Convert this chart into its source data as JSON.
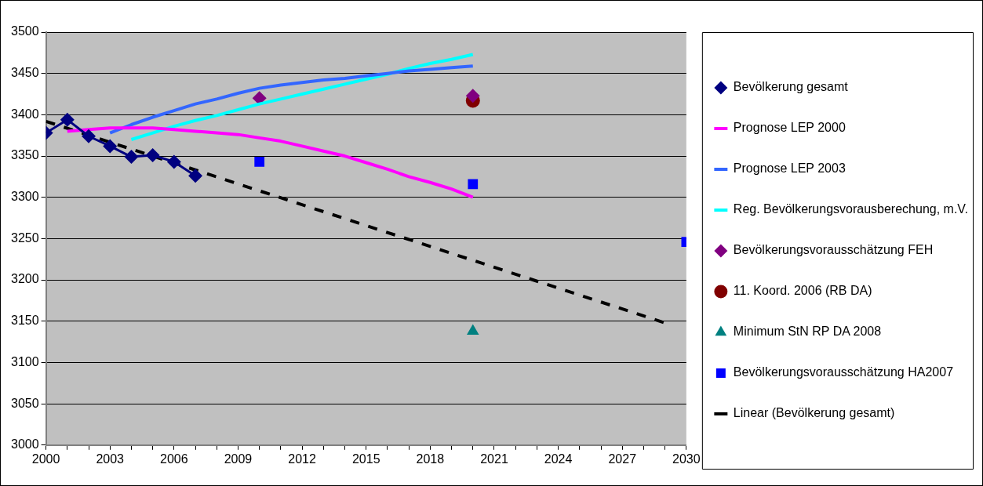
{
  "chart_data": {
    "type": "line",
    "xlim": [
      2000,
      2030
    ],
    "xticks": [
      2000,
      {
        "value": 2001,
        "label": null
      },
      {
        "value": 2002,
        "label": null
      },
      2003,
      {
        "value": 2004,
        "label": null
      },
      {
        "value": 2005,
        "label": null
      },
      2006,
      {
        "value": 2007,
        "label": null
      },
      {
        "value": 2008,
        "label": null
      },
      2009,
      {
        "value": 2010,
        "label": null
      },
      {
        "value": 2011,
        "label": null
      },
      2012,
      {
        "value": 2013,
        "label": null
      },
      {
        "value": 2014,
        "label": null
      },
      2015,
      {
        "value": 2016,
        "label": null
      },
      {
        "value": 2017,
        "label": null
      },
      2018,
      {
        "value": 2019,
        "label": null
      },
      {
        "value": 2020,
        "label": null
      },
      2021,
      {
        "value": 2022,
        "label": null
      },
      {
        "value": 2023,
        "label": null
      },
      2024,
      {
        "value": 2025,
        "label": null
      },
      {
        "value": 2026,
        "label": null
      },
      2027,
      {
        "value": 2028,
        "label": null
      },
      {
        "value": 2029,
        "label": null
      },
      2030
    ],
    "ylim": [
      3000,
      3500
    ],
    "yticks": [
      3000,
      3050,
      3100,
      3150,
      3200,
      3250,
      3300,
      3350,
      3400,
      3450,
      3500
    ],
    "grid": "y",
    "legend": "right",
    "series": [
      {
        "name": "Bevölkerung gesamt",
        "type": "line",
        "color": "#000080",
        "marker": "diamond",
        "x": [
          2000,
          2001,
          2002,
          2003,
          2004,
          2005,
          2006,
          2007
        ],
        "values": [
          3378,
          3394,
          3374,
          3362,
          3349,
          3351,
          3343,
          3326
        ]
      },
      {
        "name": "Prognose LEP 2000",
        "type": "line",
        "color": "#ff00ff",
        "marker": "none",
        "x": [
          2001,
          2002,
          2003,
          2004,
          2005,
          2006,
          2007,
          2008,
          2009,
          2010,
          2011,
          2012,
          2013,
          2014,
          2015,
          2016,
          2017,
          2018,
          2019,
          2020
        ],
        "values": [
          3380,
          3382,
          3384,
          3384,
          3384,
          3382,
          3380,
          3378,
          3376,
          3372,
          3368,
          3362,
          3356,
          3350,
          3342,
          3334,
          3325,
          3318,
          3310,
          3300
        ]
      },
      {
        "name": "Prognose LEP 2003",
        "type": "line",
        "color": "#3366ff",
        "marker": "none",
        "x": [
          2003,
          2004,
          2005,
          2006,
          2007,
          2008,
          2009,
          2010,
          2011,
          2012,
          2013,
          2014,
          2015,
          2016,
          2017,
          2018,
          2019,
          2020
        ],
        "values": [
          3378,
          3388,
          3397,
          3405,
          3413,
          3419,
          3426,
          3432,
          3436,
          3439,
          3442,
          3444,
          3447,
          3450,
          3453,
          3455,
          3457,
          3459
        ]
      },
      {
        "name": "Reg. Bevölkerungsvorausberechung, m.V.",
        "type": "line",
        "color": "#00ffff",
        "marker": "none",
        "x": [
          2004,
          2005,
          2006,
          2007,
          2008,
          2009,
          2010,
          2011,
          2012,
          2013,
          2014,
          2015,
          2016,
          2017,
          2018,
          2019,
          2020
        ],
        "values": [
          3370,
          3378,
          3386,
          3393,
          3399,
          3406,
          3413,
          3419,
          3425,
          3431,
          3437,
          3443,
          3449,
          3456,
          3462,
          3467,
          3473
        ]
      },
      {
        "name": "Bevölkerungsvorausschätzung FEH",
        "type": "scatter",
        "color": "#800080",
        "marker": "diamond",
        "x": [
          2010,
          2020
        ],
        "values": [
          3420,
          3423
        ]
      },
      {
        "name": "11. Koord. 2006 (RB DA)",
        "type": "scatter",
        "color": "#800000",
        "marker": "circle",
        "x": [
          2020
        ],
        "values": [
          3417
        ]
      },
      {
        "name": "Minimum StN RP DA 2008",
        "type": "scatter",
        "color": "#008080",
        "marker": "triangle",
        "x": [
          2020
        ],
        "values": [
          3138
        ]
      },
      {
        "name": "Bevölkerungsvorausschätzung HA2007",
        "type": "scatter",
        "color": "#0000ff",
        "marker": "square",
        "x": [
          2010,
          2020,
          2030
        ],
        "values": [
          3343,
          3316,
          3246
        ]
      },
      {
        "name": "Linear (Bevölkerung gesamt)",
        "type": "line",
        "color": "#000000",
        "marker": "none",
        "line_style": "dashed",
        "x": [
          2000,
          2029
        ],
        "values": [
          3392,
          3148
        ]
      }
    ]
  }
}
